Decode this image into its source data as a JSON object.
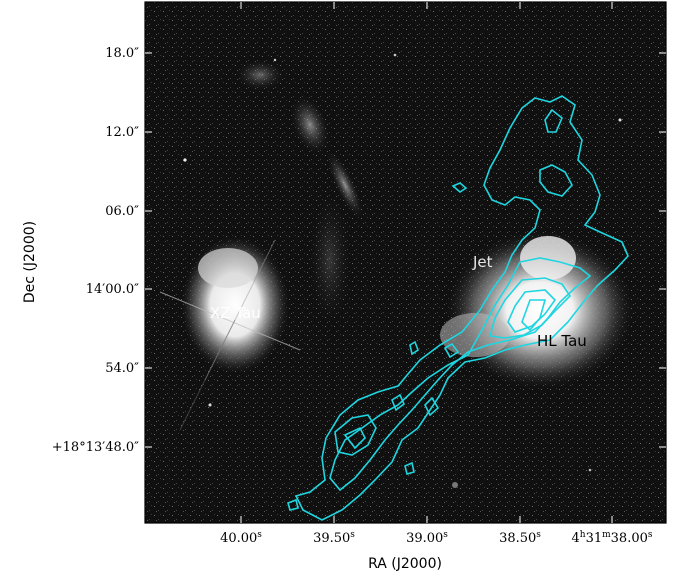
{
  "figure": {
    "xlabel": "RA (J2000)",
    "ylabel": "Dec (J2000)",
    "dec_ticks": [
      "18.0″",
      "12.0″",
      "06.0″",
      "14′00.0″",
      "54.0″",
      "+18°13′48.0″"
    ],
    "ra_ticks": [
      "40.00",
      "39.50",
      "39.00",
      "38.50",
      "4",
      "31",
      "38.00"
    ],
    "ra_units": {
      "s": "s",
      "h": "h",
      "m": "m"
    },
    "labels": {
      "xz_tau": "XZ Tau",
      "jet": "Jet",
      "hl_tau": "HL Tau"
    },
    "colors": {
      "contour": "#1fd6e0",
      "background": "#0d0d0d",
      "frame": "#000000"
    }
  }
}
